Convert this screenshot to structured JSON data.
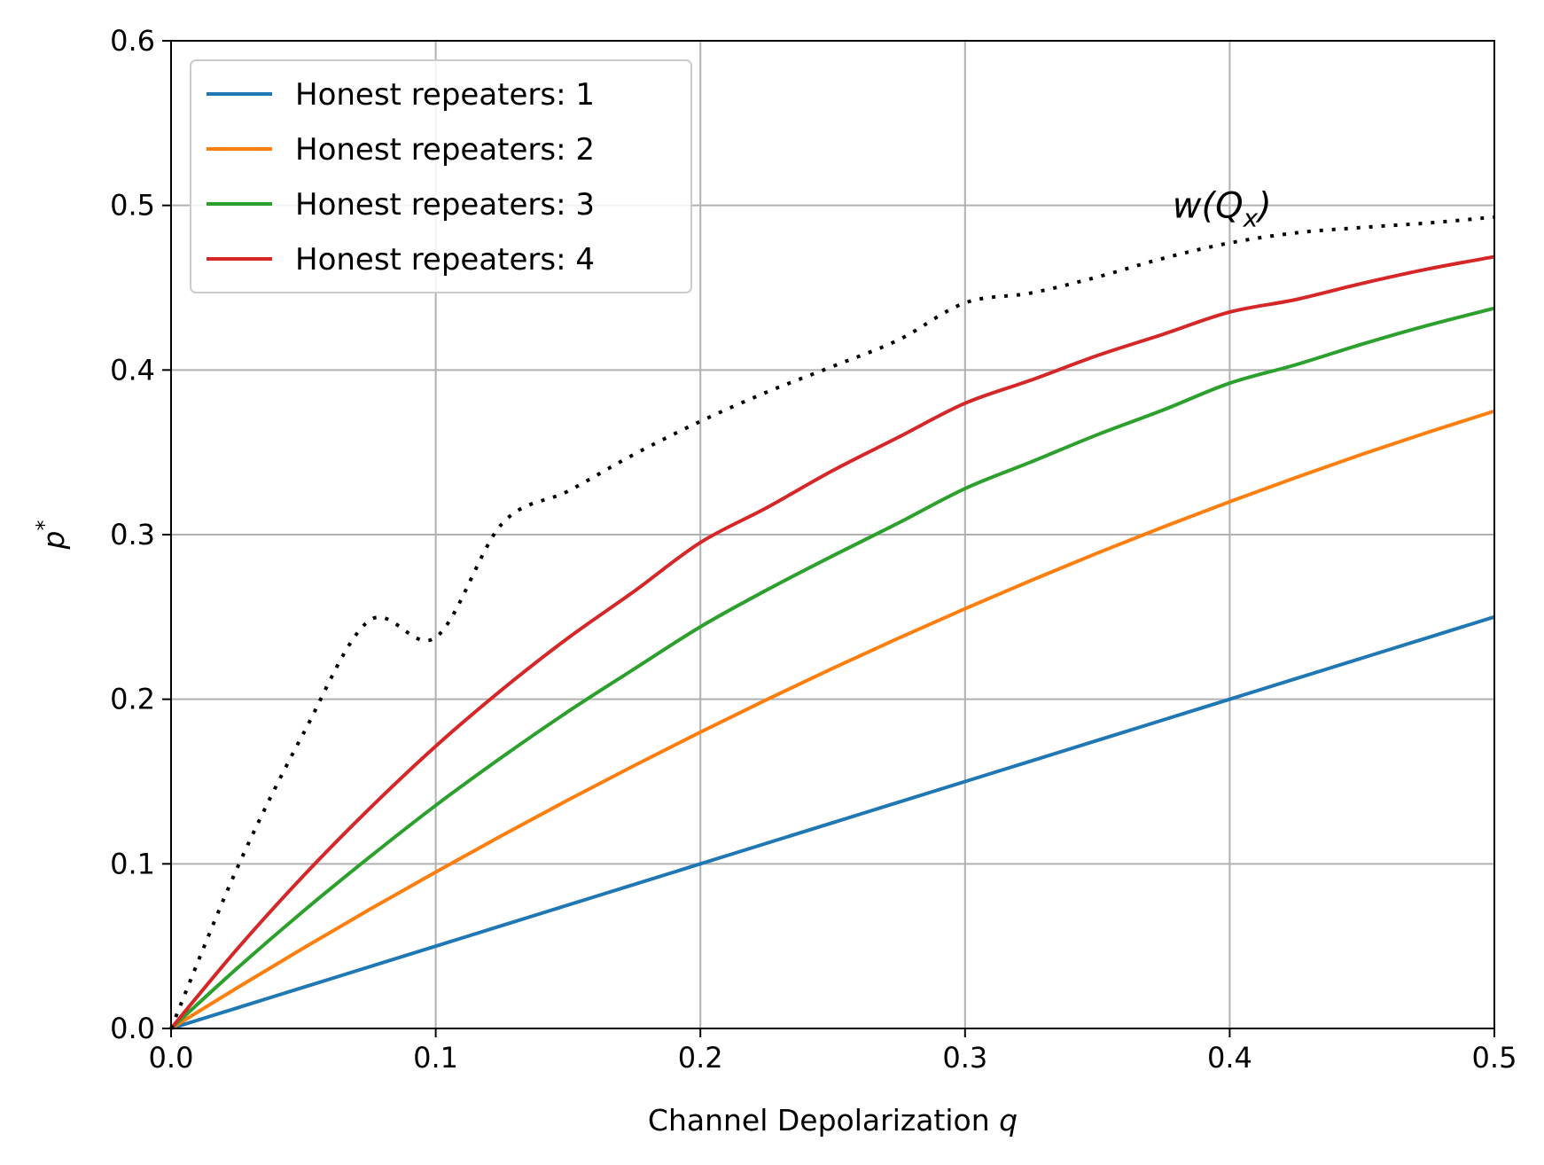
{
  "chart_data": {
    "type": "line",
    "title": "",
    "xlabel_text": "Channel Depolarization ",
    "xlabel_var": "q",
    "ylabel_base": "p",
    "ylabel_sup": "*",
    "xlim": [
      0.0,
      0.5
    ],
    "ylim": [
      0.0,
      0.6
    ],
    "x_ticks": [
      0.0,
      0.1,
      0.2,
      0.3,
      0.4,
      0.5
    ],
    "x_tick_labels": [
      "0.0",
      "0.1",
      "0.2",
      "0.3",
      "0.4",
      "0.5"
    ],
    "y_ticks": [
      0.0,
      0.1,
      0.2,
      0.3,
      0.4,
      0.5,
      0.6
    ],
    "y_tick_labels": [
      "0.0",
      "0.1",
      "0.2",
      "0.3",
      "0.4",
      "0.5",
      "0.6"
    ],
    "grid": true,
    "legend_position": "upper-left",
    "x": [
      0.0,
      0.025,
      0.05,
      0.075,
      0.1,
      0.125,
      0.15,
      0.175,
      0.2,
      0.225,
      0.25,
      0.275,
      0.3,
      0.325,
      0.35,
      0.375,
      0.4,
      0.425,
      0.45,
      0.475,
      0.5
    ],
    "series": [
      {
        "name": "Honest repeaters: 1",
        "color": "#1f77b4",
        "style": "solid",
        "values": [
          0.0,
          0.0125,
          0.025,
          0.0375,
          0.05,
          0.0625,
          0.075,
          0.0875,
          0.1,
          0.1125,
          0.125,
          0.1375,
          0.15,
          0.1625,
          0.175,
          0.1875,
          0.2,
          0.2125,
          0.225,
          0.2375,
          0.25
        ]
      },
      {
        "name": "Honest repeaters: 2",
        "color": "#ff7f0e",
        "style": "solid",
        "values": [
          0.0,
          0.0247,
          0.0488,
          0.0723,
          0.095,
          0.1172,
          0.1388,
          0.1597,
          0.18,
          0.1997,
          0.2188,
          0.2372,
          0.255,
          0.2722,
          0.2888,
          0.3047,
          0.32,
          0.3347,
          0.3488,
          0.3622,
          0.375
        ]
      },
      {
        "name": "Honest repeaters: 3",
        "color": "#2ca02c",
        "style": "solid",
        "values": [
          0.0,
          0.0366,
          0.0713,
          0.1041,
          0.1355,
          0.1648,
          0.1925,
          0.2184,
          0.244,
          0.2663,
          0.2871,
          0.3072,
          0.328,
          0.3442,
          0.3607,
          0.3758,
          0.392,
          0.4032,
          0.4157,
          0.4272,
          0.4375
        ]
      },
      {
        "name": "Honest repeaters: 4",
        "color": "#d62728",
        "style": "solid",
        "values": [
          0.0,
          0.0483,
          0.0927,
          0.1336,
          0.1715,
          0.2058,
          0.2372,
          0.2656,
          0.2952,
          0.3163,
          0.3389,
          0.3593,
          0.3798,
          0.3939,
          0.4088,
          0.4218,
          0.4352,
          0.4428,
          0.4526,
          0.4614,
          0.4688
        ]
      },
      {
        "name": "",
        "color": "#000000",
        "style": "dotted",
        "values": [
          0.0,
          0.0975,
          0.1792,
          0.2479,
          0.2376,
          0.3065,
          0.3264,
          0.3488,
          0.3688,
          0.3865,
          0.4022,
          0.4184,
          0.4408,
          0.4468,
          0.4565,
          0.4679,
          0.4772,
          0.4833,
          0.4866,
          0.4893,
          0.4929
        ]
      }
    ],
    "annotations": [
      {
        "text_base": "w(Q",
        "text_sub": "x",
        "text_end": ")",
        "x": 0.375,
        "y": 0.5
      }
    ]
  }
}
